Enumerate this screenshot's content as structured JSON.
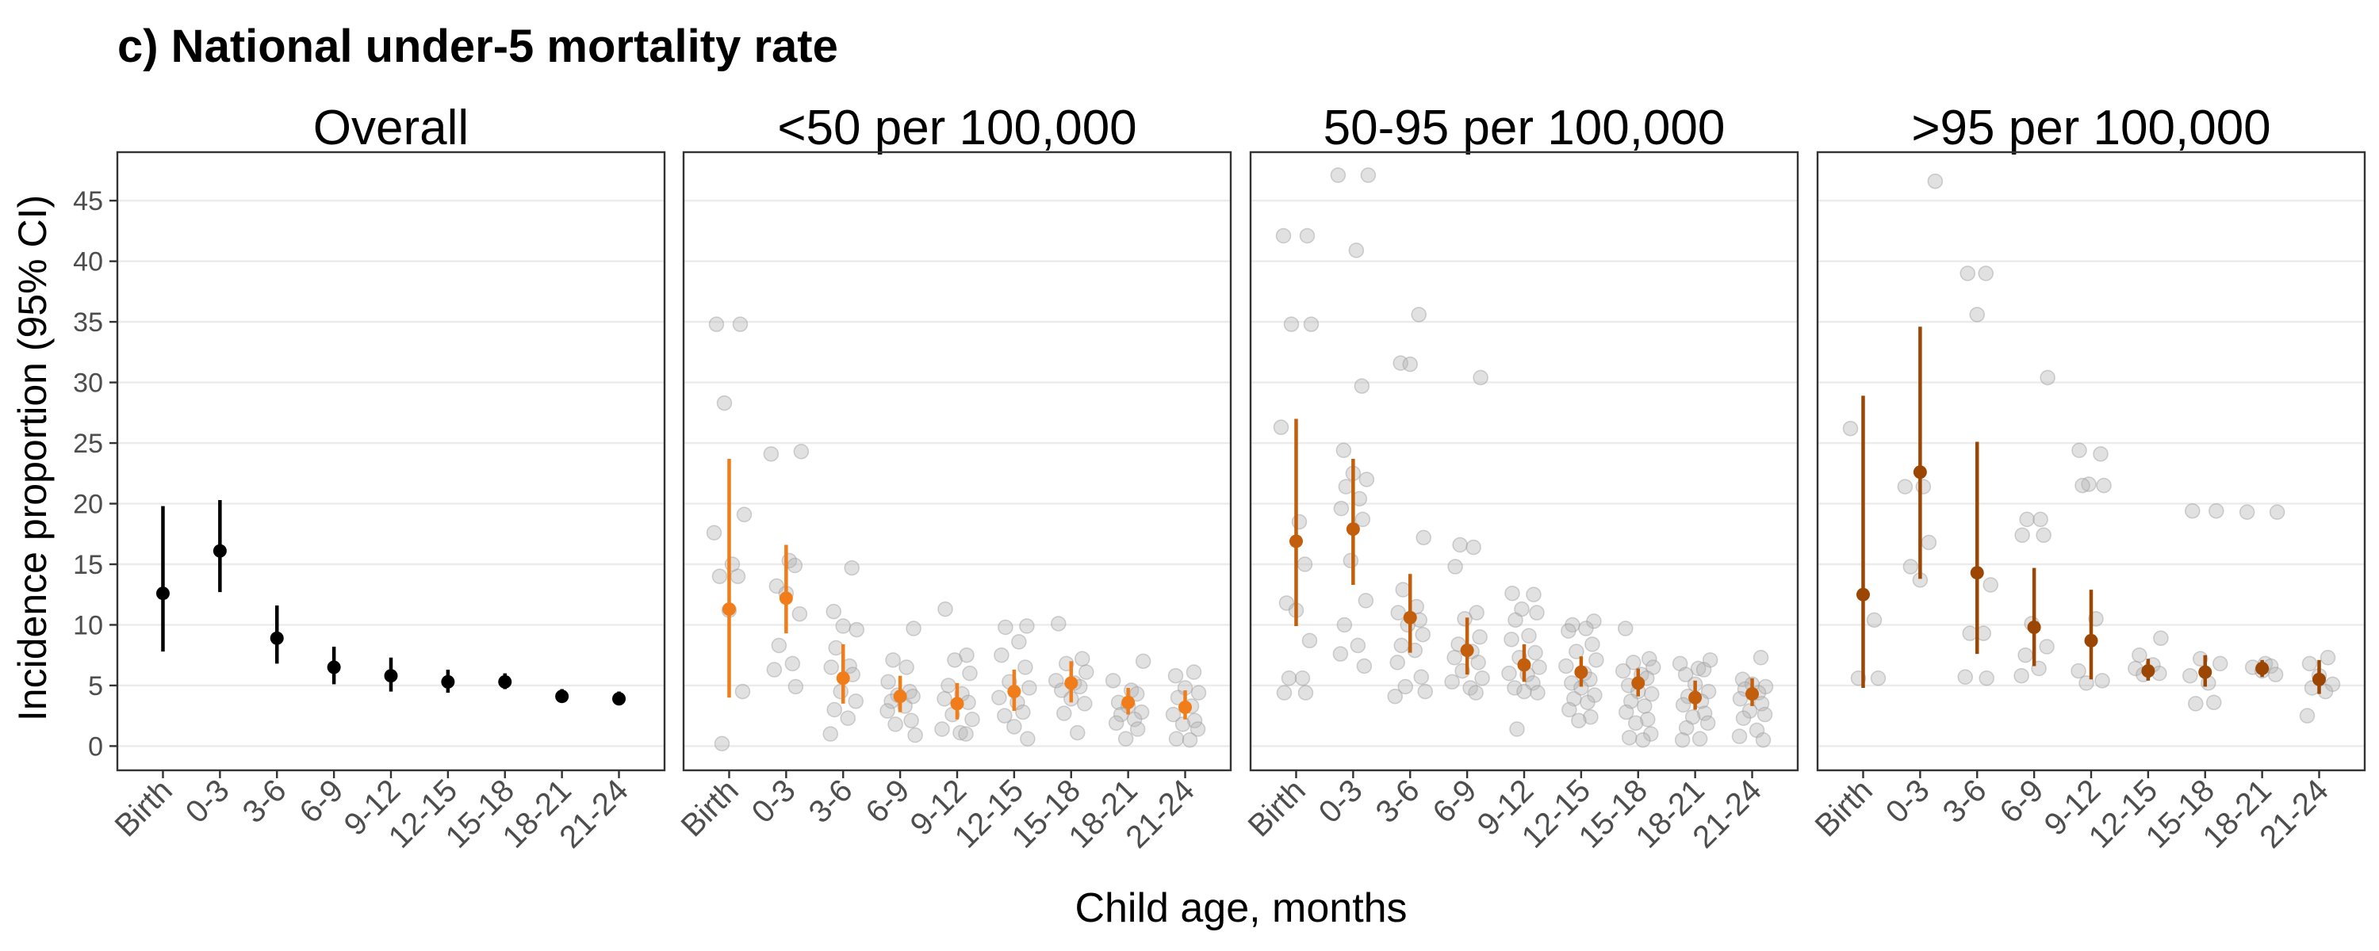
{
  "figure": {
    "title": "c) National under-5 mortality rate",
    "ylabel": "Incidence proportion (95% CI)",
    "xlabel": "Child age, months"
  },
  "chart_data": {
    "type": "scatter",
    "title": "c) National under-5 mortality rate",
    "xlabel": "Child age, months",
    "ylabel": "Incidence proportion (95% CI)",
    "ylim": [
      -2,
      49
    ],
    "yticks": [
      0,
      5,
      10,
      15,
      20,
      25,
      30,
      35,
      40,
      45
    ],
    "grid": true,
    "categories": [
      "Birth",
      "0-3",
      "3-6",
      "6-9",
      "9-12",
      "12-15",
      "15-18",
      "18-21",
      "21-24"
    ],
    "colors": {
      "Overall": "#000000",
      "<50 per 100,000": "#f07d1a",
      "50-95 per 100,000": "#c25e0c",
      ">95 per 100,000": "#9c4604",
      "points": "#b3b3b3"
    },
    "panels": [
      {
        "name": "Overall",
        "estimate": [
          12.6,
          16.1,
          8.9,
          6.5,
          5.8,
          5.3,
          5.3,
          4.1,
          3.9
        ],
        "lower": [
          7.8,
          12.7,
          6.8,
          5.1,
          4.5,
          4.4,
          4.7,
          3.6,
          3.4
        ],
        "upper": [
          19.8,
          20.3,
          11.6,
          8.2,
          7.3,
          6.3,
          6.0,
          4.7,
          4.5
        ],
        "points": [
          [],
          [],
          [],
          [],
          [],
          [],
          [],
          [],
          []
        ]
      },
      {
        "name": "<50 per 100,000",
        "estimate": [
          11.3,
          12.2,
          5.6,
          4.1,
          3.5,
          4.5,
          5.2,
          3.6,
          3.2
        ],
        "lower": [
          4.0,
          9.3,
          3.5,
          2.8,
          2.2,
          2.9,
          3.6,
          2.6,
          2.2
        ],
        "upper": [
          23.7,
          16.6,
          8.4,
          5.8,
          5.2,
          6.3,
          7.0,
          4.8,
          4.6
        ],
        "points": [
          [
            34.8,
            34.8,
            28.3,
            19.1,
            17.6,
            15.0,
            14.0,
            14.0,
            11.2,
            4.5,
            0.2
          ],
          [
            24.3,
            24.1,
            15.3,
            14.9,
            13.2,
            12.6,
            10.9,
            8.3,
            6.8,
            6.3,
            4.9
          ],
          [
            14.7,
            11.1,
            9.9,
            9.6,
            8.1,
            6.6,
            6.5,
            5.9,
            4.5,
            3.7,
            3.0,
            2.3,
            1.0
          ],
          [
            9.7,
            7.1,
            6.5,
            5.3,
            4.5,
            4.2,
            4.1,
            3.7,
            3.3,
            2.9,
            2.1,
            1.8,
            0.9
          ],
          [
            11.3,
            7.5,
            7.1,
            6.0,
            5.0,
            4.3,
            3.9,
            3.6,
            2.6,
            2.2,
            1.4,
            1.1,
            1.0
          ],
          [
            9.9,
            9.8,
            8.6,
            7.5,
            6.5,
            5.3,
            4.8,
            4.0,
            3.6,
            2.8,
            2.5,
            1.6,
            0.6
          ],
          [
            10.1,
            7.2,
            6.8,
            6.1,
            5.4,
            5.2,
            4.9,
            4.6,
            3.9,
            3.5,
            2.7,
            1.1
          ],
          [
            7.0,
            5.4,
            4.6,
            4.3,
            3.6,
            3.3,
            2.8,
            2.6,
            2.2,
            1.9,
            1.4,
            0.6
          ],
          [
            6.1,
            5.8,
            4.8,
            4.4,
            4.0,
            3.3,
            2.6,
            2.1,
            1.8,
            1.4,
            0.6,
            0.5
          ]
        ]
      },
      {
        "name": "50-95 per 100,000",
        "estimate": [
          16.9,
          17.9,
          10.6,
          7.9,
          6.7,
          6.1,
          5.2,
          4.0,
          4.3
        ],
        "lower": [
          9.9,
          13.3,
          7.7,
          5.9,
          5.3,
          4.9,
          4.1,
          3.0,
          3.3
        ],
        "upper": [
          27.0,
          23.7,
          14.2,
          10.6,
          8.4,
          7.4,
          6.4,
          5.4,
          5.6
        ],
        "points": [
          [
            42.1,
            42.1,
            34.8,
            34.8,
            26.3,
            18.5,
            15.0,
            11.8,
            11.2,
            8.7,
            5.6,
            5.6,
            4.4,
            4.4
          ],
          [
            47.1,
            47.1,
            40.9,
            29.7,
            24.4,
            22.5,
            22.0,
            21.4,
            20.4,
            19.6,
            18.7,
            15.3,
            12.0,
            10.0,
            8.3,
            7.6,
            6.6
          ],
          [
            35.6,
            31.6,
            31.5,
            17.2,
            12.9,
            11.5,
            11.0,
            10.4,
            10.0,
            9.2,
            8.3,
            7.9,
            6.9,
            5.7,
            4.9,
            4.5,
            4.1
          ],
          [
            30.4,
            16.6,
            16.4,
            14.8,
            11.0,
            10.5,
            9.0,
            8.4,
            7.8,
            7.3,
            6.9,
            6.2,
            5.6,
            5.3,
            4.8,
            4.4
          ],
          [
            12.6,
            12.5,
            11.3,
            11.0,
            10.4,
            9.1,
            8.8,
            7.7,
            7.3,
            6.5,
            6.0,
            5.9,
            5.2,
            4.8,
            4.5,
            4.4,
            1.4
          ],
          [
            10.3,
            10.0,
            9.7,
            9.5,
            8.4,
            7.8,
            7.1,
            6.6,
            6.0,
            5.5,
            5.2,
            4.8,
            4.2,
            3.9,
            3.6,
            3.0,
            2.4,
            2.1
          ],
          [
            9.7,
            7.2,
            6.9,
            6.5,
            6.2,
            5.9,
            5.6,
            5.0,
            4.5,
            4.3,
            3.7,
            3.3,
            2.8,
            2.2,
            1.9,
            1.0,
            0.7,
            0.5
          ],
          [
            7.1,
            6.8,
            6.4,
            6.3,
            5.9,
            5.1,
            4.5,
            4.1,
            3.7,
            3.4,
            2.7,
            2.4,
            1.9,
            1.5,
            0.6,
            0.5
          ],
          [
            7.3,
            5.5,
            5.1,
            4.9,
            4.7,
            4.4,
            3.9,
            3.5,
            2.9,
            2.6,
            2.3,
            1.3,
            0.8,
            0.5
          ]
        ]
      },
      {
        "name": ">95 per 100,000",
        "estimate": [
          12.5,
          22.6,
          14.3,
          9.8,
          8.7,
          6.2,
          6.1,
          6.4,
          5.5
        ],
        "lower": [
          4.8,
          13.8,
          7.6,
          6.6,
          5.5,
          5.4,
          4.9,
          5.7,
          4.3
        ],
        "upper": [
          28.9,
          34.6,
          25.1,
          14.7,
          12.9,
          7.2,
          7.5,
          7.1,
          7.1
        ],
        "points": [
          [
            26.2,
            10.4,
            5.6,
            5.6
          ],
          [
            46.6,
            21.4,
            21.4,
            16.8,
            14.8,
            13.7
          ],
          [
            39.0,
            39.0,
            35.6,
            13.3,
            9.3,
            9.3,
            5.7,
            5.6
          ],
          [
            30.4,
            18.7,
            18.7,
            17.4,
            17.4,
            10.1,
            8.2,
            7.5,
            6.4,
            5.8
          ],
          [
            24.4,
            24.1,
            21.6,
            21.5,
            21.5,
            10.5,
            6.2,
            5.4,
            5.2
          ],
          [
            8.9,
            7.5,
            6.7,
            6.4,
            6.0,
            5.9
          ],
          [
            19.4,
            19.4,
            7.2,
            6.8,
            5.8,
            5.2,
            3.6,
            3.5
          ],
          [
            19.3,
            19.3,
            6.8,
            6.6,
            6.5,
            6.2,
            5.9
          ],
          [
            7.3,
            6.8,
            5.8,
            5.1,
            4.8,
            4.5,
            2.5
          ]
        ]
      }
    ]
  }
}
